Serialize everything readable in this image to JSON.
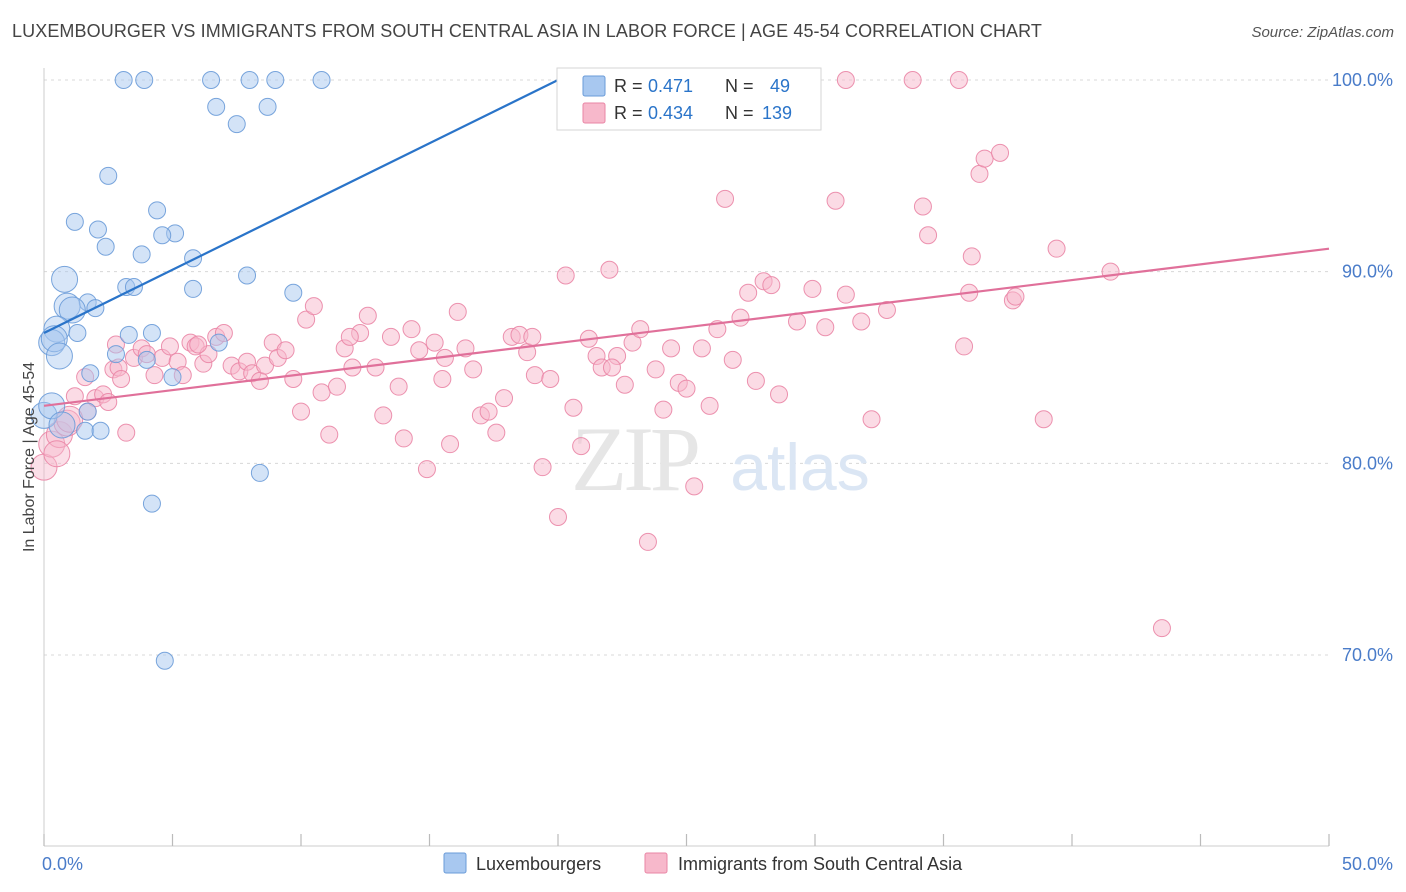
{
  "header": {
    "title": "LUXEMBOURGER VS IMMIGRANTS FROM SOUTH CENTRAL ASIA IN LABOR FORCE | AGE 45-54 CORRELATION CHART",
    "source": "Source: ZipAtlas.com"
  },
  "watermark": {
    "zip": "ZIP",
    "atlas": "atlas"
  },
  "colors": {
    "blue_fill": "#a8c8f0",
    "blue_stroke": "#6a9bd8",
    "blue_line": "#2a74c9",
    "pink_fill": "#f7b8cb",
    "pink_stroke": "#ea86a6",
    "pink_line": "#e0709a",
    "tick_label": "#4a7cc9",
    "grid": "#d8d8d8"
  },
  "legend_box": {
    "rows": [
      {
        "r_label": "R =",
        "r_value": "0.471",
        "n_label": "N =",
        "n_value": "49",
        "series": "blue"
      },
      {
        "r_label": "R =",
        "r_value": "0.434",
        "n_label": "N =",
        "n_value": "139",
        "series": "pink"
      }
    ]
  },
  "chart_data": {
    "type": "scatter",
    "title": "LUXEMBOURGER VS IMMIGRANTS FROM SOUTH CENTRAL ASIA IN LABOR FORCE | AGE 45-54 CORRELATION CHART",
    "xlabel": "",
    "ylabel": "In Labor Force | Age 45-54",
    "xlim": [
      0,
      50
    ],
    "ylim": [
      59,
      102
    ],
    "x_tick_labels": [
      {
        "value": 0,
        "label": "0.0%"
      },
      {
        "value": 50,
        "label": "50.0%"
      }
    ],
    "y_tick_labels": [
      {
        "value": 100,
        "label": "100.0%"
      },
      {
        "value": 90,
        "label": "90.0%"
      },
      {
        "value": 80,
        "label": "80.0%"
      },
      {
        "value": 70,
        "label": "70.0%"
      }
    ],
    "grid": true,
    "legend_position": "bottom",
    "series": [
      {
        "name": "Luxembourgers",
        "color": "blue",
        "r": 0.471,
        "n": 49,
        "trend": {
          "x": [
            0,
            20
          ],
          "y": [
            86.8,
            100.0
          ]
        },
        "points": [
          [
            3.1,
            100
          ],
          [
            3.9,
            100
          ],
          [
            6.5,
            100
          ],
          [
            8.0,
            100
          ],
          [
            9.0,
            100
          ],
          [
            10.8,
            100
          ],
          [
            6.7,
            98.6
          ],
          [
            8.7,
            98.6
          ],
          [
            7.5,
            97.7
          ],
          [
            2.5,
            95.0
          ],
          [
            4.4,
            93.2
          ],
          [
            1.2,
            92.6
          ],
          [
            2.1,
            92.2
          ],
          [
            5.1,
            92.0
          ],
          [
            4.6,
            91.9
          ],
          [
            2.4,
            91.3
          ],
          [
            3.8,
            90.9
          ],
          [
            5.8,
            90.7
          ],
          [
            0.8,
            89.6
          ],
          [
            7.9,
            89.8
          ],
          [
            3.2,
            89.2
          ],
          [
            3.5,
            89.2
          ],
          [
            5.8,
            89.1
          ],
          [
            9.7,
            88.9
          ],
          [
            1.7,
            88.4
          ],
          [
            0.9,
            88.2
          ],
          [
            2.0,
            88.1
          ],
          [
            1.1,
            88.0
          ],
          [
            0.5,
            87.0
          ],
          [
            1.3,
            86.8
          ],
          [
            3.3,
            86.7
          ],
          [
            4.2,
            86.8
          ],
          [
            0.3,
            86.3
          ],
          [
            0.4,
            86.5
          ],
          [
            6.8,
            86.3
          ],
          [
            0.6,
            85.6
          ],
          [
            2.8,
            85.7
          ],
          [
            4.0,
            85.4
          ],
          [
            1.8,
            84.7
          ],
          [
            5.0,
            84.5
          ],
          [
            1.7,
            82.7
          ],
          [
            1.6,
            81.7
          ],
          [
            2.2,
            81.7
          ],
          [
            8.4,
            79.5
          ],
          [
            4.2,
            77.9
          ],
          [
            4.7,
            69.7
          ],
          [
            0.0,
            82.5
          ],
          [
            0.3,
            83.0
          ],
          [
            0.7,
            82.0
          ]
        ]
      },
      {
        "name": "Immigrants from South Central Asia",
        "color": "pink",
        "r": 0.434,
        "n": 139,
        "trend": {
          "x": [
            0,
            50
          ],
          "y": [
            83.0,
            91.2
          ]
        },
        "points": [
          [
            0.0,
            79.8
          ],
          [
            0.3,
            81.0
          ],
          [
            0.6,
            81.5
          ],
          [
            0.9,
            82.1
          ],
          [
            1.2,
            83.5
          ],
          [
            1.6,
            84.5
          ],
          [
            1.7,
            82.7
          ],
          [
            2.0,
            83.4
          ],
          [
            2.3,
            83.6
          ],
          [
            2.5,
            83.2
          ],
          [
            2.7,
            84.9
          ],
          [
            2.9,
            85.0
          ],
          [
            3.0,
            84.4
          ],
          [
            3.2,
            81.6
          ],
          [
            3.5,
            85.5
          ],
          [
            3.8,
            86.0
          ],
          [
            4.0,
            85.7
          ],
          [
            4.3,
            84.6
          ],
          [
            4.6,
            85.5
          ],
          [
            4.9,
            86.1
          ],
          [
            5.2,
            85.3
          ],
          [
            5.4,
            84.6
          ],
          [
            5.7,
            86.3
          ],
          [
            5.9,
            86.1
          ],
          [
            6.2,
            85.2
          ],
          [
            6.4,
            85.7
          ],
          [
            6.7,
            86.6
          ],
          [
            7.0,
            86.8
          ],
          [
            7.3,
            85.1
          ],
          [
            7.6,
            84.8
          ],
          [
            7.9,
            85.3
          ],
          [
            8.1,
            84.7
          ],
          [
            8.4,
            84.3
          ],
          [
            8.6,
            85.1
          ],
          [
            8.9,
            86.3
          ],
          [
            9.1,
            85.5
          ],
          [
            9.4,
            85.9
          ],
          [
            9.7,
            84.4
          ],
          [
            10.0,
            82.7
          ],
          [
            10.2,
            87.5
          ],
          [
            10.5,
            88.2
          ],
          [
            10.8,
            83.7
          ],
          [
            11.1,
            81.5
          ],
          [
            11.4,
            84.0
          ],
          [
            11.7,
            86.0
          ],
          [
            12.0,
            85.0
          ],
          [
            12.3,
            86.8
          ],
          [
            12.6,
            87.7
          ],
          [
            12.9,
            85.0
          ],
          [
            13.2,
            82.5
          ],
          [
            13.5,
            86.6
          ],
          [
            13.8,
            84.0
          ],
          [
            14.0,
            81.3
          ],
          [
            14.3,
            87.0
          ],
          [
            14.6,
            85.9
          ],
          [
            14.9,
            79.7
          ],
          [
            15.2,
            86.3
          ],
          [
            15.5,
            84.4
          ],
          [
            15.8,
            81.0
          ],
          [
            16.1,
            87.9
          ],
          [
            16.4,
            86.0
          ],
          [
            16.7,
            84.9
          ],
          [
            17.0,
            82.5
          ],
          [
            17.3,
            82.7
          ],
          [
            17.6,
            81.6
          ],
          [
            17.9,
            83.4
          ],
          [
            18.2,
            86.6
          ],
          [
            18.5,
            86.7
          ],
          [
            18.8,
            85.8
          ],
          [
            19.1,
            84.6
          ],
          [
            19.4,
            79.8
          ],
          [
            19.7,
            84.4
          ],
          [
            20.0,
            77.2
          ],
          [
            20.3,
            89.8
          ],
          [
            20.6,
            82.9
          ],
          [
            20.9,
            80.9
          ],
          [
            21.2,
            86.5
          ],
          [
            21.5,
            85.6
          ],
          [
            21.7,
            85.0
          ],
          [
            22.0,
            90.1
          ],
          [
            22.3,
            85.6
          ],
          [
            22.6,
            84.1
          ],
          [
            22.9,
            86.3
          ],
          [
            23.2,
            87.0
          ],
          [
            23.5,
            75.9
          ],
          [
            23.8,
            84.9
          ],
          [
            24.1,
            82.8
          ],
          [
            24.4,
            86.0
          ],
          [
            24.7,
            84.2
          ],
          [
            25.0,
            83.9
          ],
          [
            25.3,
            78.8
          ],
          [
            25.6,
            86.0
          ],
          [
            25.9,
            83.0
          ],
          [
            26.2,
            87.0
          ],
          [
            26.5,
            93.8
          ],
          [
            26.8,
            85.4
          ],
          [
            27.1,
            87.6
          ],
          [
            27.4,
            88.9
          ],
          [
            27.7,
            84.3
          ],
          [
            28.0,
            89.5
          ],
          [
            28.3,
            89.3
          ],
          [
            28.6,
            83.6
          ],
          [
            29.3,
            87.4
          ],
          [
            29.9,
            89.1
          ],
          [
            30.4,
            87.1
          ],
          [
            30.8,
            93.7
          ],
          [
            31.2,
            88.8
          ],
          [
            31.8,
            87.4
          ],
          [
            32.2,
            82.3
          ],
          [
            31.2,
            100
          ],
          [
            32.8,
            88.0
          ],
          [
            33.8,
            100
          ],
          [
            34.2,
            93.4
          ],
          [
            34.4,
            91.9
          ],
          [
            35.6,
            100
          ],
          [
            35.8,
            86.1
          ],
          [
            36.0,
            88.9
          ],
          [
            36.1,
            90.8
          ],
          [
            36.4,
            95.1
          ],
          [
            36.6,
            95.9
          ],
          [
            37.2,
            96.2
          ],
          [
            37.7,
            88.5
          ],
          [
            37.8,
            88.7
          ],
          [
            38.9,
            82.3
          ],
          [
            39.4,
            91.2
          ],
          [
            41.5,
            90.0
          ],
          [
            43.5,
            71.4
          ],
          [
            0.5,
            80.5
          ],
          [
            1.0,
            82.3
          ],
          [
            2.8,
            86.2
          ],
          [
            6.0,
            86.2
          ],
          [
            11.9,
            86.6
          ],
          [
            15.6,
            85.5
          ],
          [
            19.0,
            86.6
          ],
          [
            22.1,
            85.0
          ]
        ]
      }
    ]
  },
  "y_axis": {
    "label": "In Labor Force | Age 45-54"
  },
  "bottom_legend": {
    "items": [
      {
        "label": "Luxembourgers",
        "series": "blue"
      },
      {
        "label": "Immigrants from South Central Asia",
        "series": "pink"
      }
    ]
  }
}
